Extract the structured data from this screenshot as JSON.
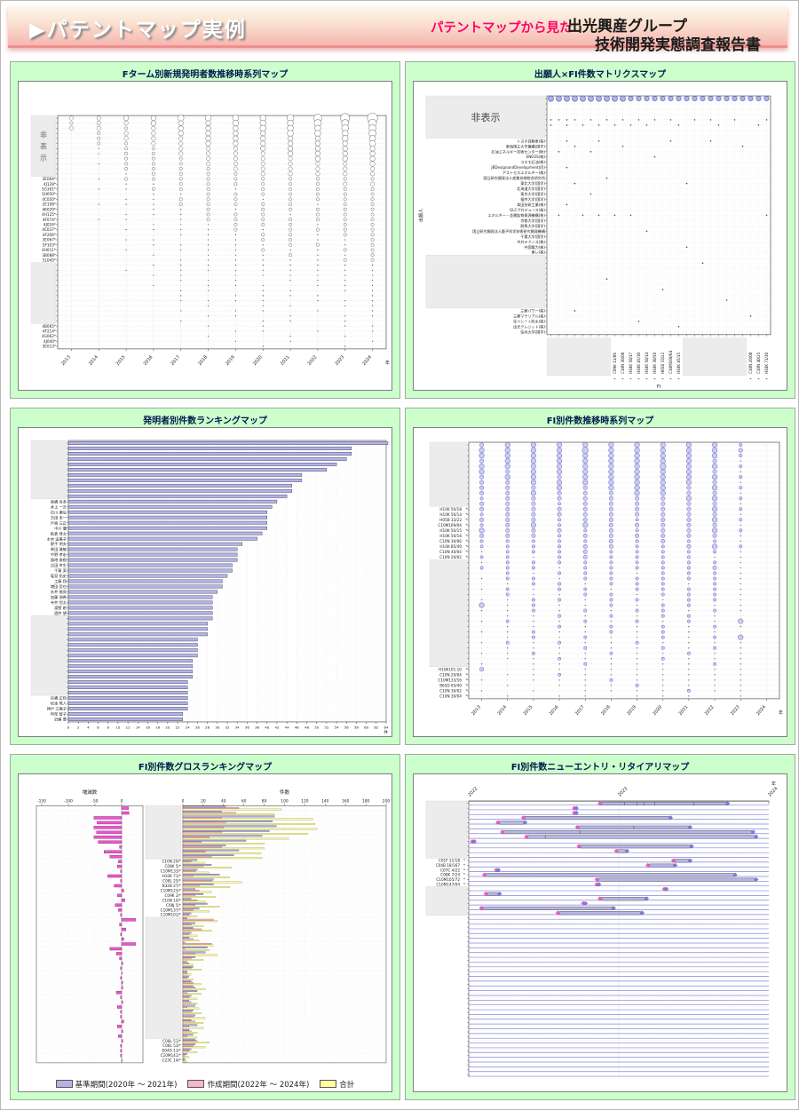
{
  "header": {
    "arrow": "▶",
    "title": "パテントマップ実例",
    "catchphrase": "パテントマップから見た",
    "company": "出光興産グループ",
    "report_title": "技術開発実態調査報告書"
  },
  "colors": {
    "accent_pink": "#ff0066",
    "panel_green": "#ccffcc",
    "bubble_purple": "#b0b0e8",
    "bar_lavender": "#b3b3e6",
    "bar_magenta": "#ee55cc",
    "gantt_bar": "#b6b6ea",
    "diamond_pink": "#ff5ccc",
    "diamond_blue": "#8080e0"
  },
  "chart_data": [
    {
      "id": "fterm-new-inventor-timeseries",
      "type": "scatter",
      "title": "Fターム別新規発明者数推移時系列マップ",
      "x": [
        "2013",
        "2014",
        "2015",
        "2016",
        "2017",
        "2018",
        "2019",
        "2020",
        "2021",
        "2022",
        "2023",
        "2024"
      ],
      "x_unit": "年",
      "hidden_text": "非表示",
      "hidden": [
        [
          0,
          11
        ],
        [
          29,
          40
        ]
      ],
      "labels": {
        "12": "3E064*",
        "13": "4J128*",
        "14": "5G301*",
        "15": "5H050*",
        "16": "4C050*",
        "17": "2E108*",
        "18": "4K029*",
        "19": "4H125*",
        "20": "4F074*",
        "21": "4J026*",
        "22": "4C037*",
        "23": "4F206*",
        "24": "3E067*",
        "25": "5F103*",
        "26": "4H011*",
        "27": "3B088*",
        "28": "5L045*",
        "41": "4B065*",
        "42": "4F214*",
        "43": "4G062*",
        "44": "4J040*",
        "45": "3E013*"
      },
      "rows": [
        "334455556789",
        "233444555667",
        "332344455566",
        "023344445556",
        "023334444455",
        "022334444445",
        "012233344444",
        "012233334444",
        "002223333444",
        "012223333334",
        "002222333333",
        "001222233333",
        "012222222222",
        "001122222233",
        "011222122222",
        "000112222222",
        "001122212222",
        "011122222122",
        "000112122222",
        "001112221222",
        "011012222222",
        "000111222122",
        "001111212222",
        "000011122122",
        "001101122112",
        "000111112212",
        "001011121122",
        "000101112112",
        "000011111122",
        "000111111111",
        "001011111111",
        "000110111111",
        "000011101111",
        "000101110111",
        "000011011011",
        "000010111101",
        "000011110111",
        "000001011011",
        "000010110101",
        "000001101011",
        "000010011010",
        "000001010011",
        "000000110101",
        "000001001010",
        "000000101001",
        "000000010010"
      ]
    },
    {
      "id": "applicant-fi-matrix",
      "type": "heatmap",
      "title": "出願人×FI件数マトリクスマップ",
      "y_axis": "出願人",
      "x_axis": "FI",
      "row_count": 45,
      "col_count": 28,
      "hidden_text": "非表示",
      "y_hidden": [
        [
          0,
          7
        ],
        [
          30,
          39
        ]
      ],
      "x_hidden": [
        [
          0,
          7
        ],
        [
          17,
          24
        ]
      ],
      "y_labels": {
        "8": "トヨタ自動車(株)",
        "9": "東海国立大学機構(国学)",
        "10": "石油エネルギー技術センター(財)",
        "11": "ENEOS(株)",
        "12": "コスモ石油(株)",
        "13": "JBDesignandDevelopment(同)",
        "14": "アストモスエネルギー(株)",
        "15": "国立研究開発法人産業技術総合研究所",
        "16": "東北大学(国学)",
        "17": "北海道大学(国学)",
        "18": "東京大学(国学)",
        "19": "福井大学(国学)",
        "20": "本田技研工業(株)",
        "21": "GLCプロデュース(株)",
        "22": "エネルギー・金属鉱物資源機構(独)",
        "23": "京都大学(国学)",
        "24": "群馬大学(国学)",
        "25": "国立研究開発法人量子科学技術研究開発機構",
        "26": "千葉大学(国学)",
        "27": "中外テクノス(株)",
        "28": "中国電力(株)",
        "29": "東レ(株)",
        "40": "三菱パワー(株)",
        "41": "三菱マテリアル(株)",
        "42": "住ベシート防水(株)",
        "43": "出光クレジット(株)",
        "44": "信州大学(国学)"
      },
      "x_labels": {
        "8": "C09K 11/06",
        "9": "C10N 30/00",
        "10": "H10K 50/17",
        "11": "H10K 85/30",
        "12": "H10K 50/14",
        "13": "H10K 30/50",
        "14": "H05B 33/22",
        "15": "C10M169/04",
        "16": "H10K 85/15",
        "25": "C10N 20/00",
        "26": "C10N 40/25",
        "27": "H10K 71/30"
      },
      "dots": {
        "4": [
          0,
          1,
          2,
          3,
          5,
          7,
          9,
          11,
          13,
          15,
          18,
          20,
          23,
          27
        ],
        "5": [
          0,
          2,
          4,
          6,
          8,
          10,
          12,
          16,
          21,
          26
        ],
        "8": [
          2,
          6,
          15,
          20
        ],
        "9": [
          3,
          9,
          24
        ],
        "10": [
          1,
          5
        ],
        "11": [
          13
        ],
        "13": [
          2
        ],
        "15": [
          7
        ],
        "16": [
          3,
          17
        ],
        "18": [
          5
        ],
        "20": [
          2
        ],
        "22": [
          1,
          4,
          6,
          8,
          10,
          27
        ],
        "25": [
          12
        ],
        "28": [
          17
        ],
        "31": [
          19
        ],
        "34": [
          7
        ],
        "36": [
          14
        ],
        "38": [
          22
        ],
        "40": [
          3
        ],
        "41": [
          25
        ],
        "42": [
          11
        ],
        "43": [
          16
        ]
      }
    },
    {
      "id": "inventor-ranking",
      "type": "bar",
      "title": "発明者別件数ランキングマップ",
      "x_unit": "件",
      "xmax": 64,
      "tick_step": 2,
      "hidden": [
        [
          0,
          10
        ],
        [
          33,
          47
        ]
      ],
      "labels": {
        "11": "高橋 良多",
        "12": "井上 一吉",
        "13": "石川 康弘",
        "14": "吉田 圭一",
        "15": "戸高 三正",
        "16": "中川 優",
        "17": "板倉 啓太",
        "18": "水木 由美子",
        "19": "野手 明夫",
        "20": "柴田 雅敏",
        "21": "中野 孝宏",
        "22": "福地 俊樹",
        "23": "吉田 幸生",
        "24": "千賀 実",
        "25": "塩見 拓史",
        "26": "工藤 翔",
        "27": "増田 哲也",
        "28": "糸井 格亮",
        "29": "加藤 朋希",
        "30": "寺井 恒太",
        "31": "渡壁 創",
        "32": "酒井 望",
        "48": "舟橋 正和",
        "49": "松本 晃人",
        "50": "神戸 江美子",
        "51": "阿部 智子",
        "52": "近藤 要"
      },
      "values": [
        64.5,
        57,
        57,
        56,
        54,
        52,
        47,
        47,
        45,
        45,
        44,
        42,
        41,
        40,
        40,
        40,
        40,
        39,
        38,
        35,
        34,
        34,
        34,
        33,
        33,
        32,
        31,
        31,
        30,
        29,
        29,
        29,
        29,
        29,
        28,
        28,
        28,
        26,
        26,
        26,
        26,
        25,
        25,
        25,
        25,
        24,
        24,
        24,
        24,
        24,
        24,
        23,
        23
      ]
    },
    {
      "id": "fi-count-timeseries",
      "type": "scatter",
      "title": "FI別件数推移時系列マップ",
      "x": [
        "2013",
        "2014",
        "2015",
        "2016",
        "2017",
        "2018",
        "2019",
        "2020",
        "2021",
        "2022",
        "2023",
        "2024"
      ],
      "x_unit": "年",
      "hidden": [
        [
          0,
          11
        ],
        [
          22,
          41
        ]
      ],
      "labels": {
        "12": "H10K 50/18",
        "13": "H10K 50/14",
        "14": "H05B 33/22",
        "15": "C10M169/04",
        "16": "H10K 50/15",
        "17": "H10K 50/16",
        "18": "C10N 30/06",
        "19": "H10K 85/40",
        "20": "C10N 40/04",
        "21": "C10N 20/02",
        "42": "H10K101:10",
        "43": "C10N 20/04",
        "44": "C10M133/16",
        "45": "B65D 65/40",
        "46": "C10N 30/02",
        "47": "C10N 30/04"
      },
      "rows": [
        "344444444420",
        "444454444430",
        "444444444420",
        "344444444310",
        "444444454420",
        "434444444310",
        "344344444420",
        "334444444310",
        "333434443420",
        "334333443310",
        "233333334420",
        "333233333310",
        "333333333420",
        "233333333310",
        "333233233420",
        "234243333310",
        "433323233420",
        "333233333310",
        "222223232210",
        "222233223420",
        "122232222210",
        "221232222110",
        "122222222210",
        "222122222310",
        "021222122210",
        "122122222210",
        "012212221210",
        "121221222210",
        "021122122210",
        "112212212210",
        "412112122110",
        "112121221210",
        "011212122100",
        "121121212140",
        "011212121210",
        "112112121100",
        "012121121240",
        "121211211110",
        "011121121210",
        "112112112110",
        "011211121110",
        "101121111210",
        "301111111110",
        "011211111110",
        "101112111110",
        "010111211110",
        "101011112110",
        "010110111010"
      ]
    },
    {
      "id": "fi-gross-ranking",
      "type": "bar",
      "title": "FI別件数グロスランキングマップ",
      "left_title": "増減数",
      "right_title": "件数",
      "left_ticks": [
        -150,
        -100,
        -50,
        0
      ],
      "right_max": 200,
      "right_tick_step": 20,
      "hidden": [
        [
          0,
          10
        ],
        [
          23,
          47
        ]
      ],
      "labels": {
        "11": "C10N 20/*",
        "12": "C08K 5/*",
        "13": "C10M133/*",
        "14": "H10K 71/*",
        "15": "C08L 25/*",
        "16": "B32B 27/*",
        "17": "C10M125/*",
        "18": "C09K 3/*",
        "19": "C10N 10/*",
        "20": "C08J 5/*",
        "21": "C10M137/*",
        "22": "C10M101/*",
        "48": "C08L 51/*",
        "49": "C08L 53/*",
        "50": "E04D 13/*",
        "51": "C10M141/*",
        "52": "C23C 14/*"
      },
      "pairs": [
        [
          42,
          55
        ],
        [
          38,
          52
        ],
        [
          90,
          38
        ],
        [
          88,
          42
        ],
        [
          92,
          40
        ],
        [
          85,
          38
        ],
        [
          78,
          26
        ],
        [
          62,
          18
        ],
        [
          42,
          38
        ],
        [
          55,
          22
        ],
        [
          50,
          28
        ],
        [
          14,
          8
        ],
        [
          28,
          20
        ],
        [
          14,
          12
        ],
        [
          36,
          10
        ],
        [
          30,
          28
        ],
        [
          30,
          16
        ],
        [
          12,
          16
        ],
        [
          20,
          12
        ],
        [
          8,
          14
        ],
        [
          24,
          12
        ],
        [
          16,
          10
        ],
        [
          8,
          6
        ],
        [
          4,
          30
        ],
        [
          12,
          8
        ],
        [
          10,
          18
        ],
        [
          8,
          6
        ],
        [
          6,
          10
        ],
        [
          2,
          28
        ],
        [
          24,
          2
        ],
        [
          22,
          12
        ],
        [
          12,
          8
        ],
        [
          4,
          6
        ],
        [
          10,
          8
        ],
        [
          4,
          4
        ],
        [
          6,
          4
        ],
        [
          8,
          10
        ],
        [
          10,
          12
        ],
        [
          14,
          4
        ],
        [
          8,
          6
        ],
        [
          6,
          8
        ],
        [
          12,
          4
        ],
        [
          10,
          8
        ],
        [
          12,
          10
        ],
        [
          8,
          12
        ],
        [
          14,
          6
        ],
        [
          6,
          8
        ],
        [
          10,
          4
        ],
        [
          12,
          14
        ],
        [
          12,
          10
        ],
        [
          8,
          6
        ],
        [
          4,
          2
        ],
        [
          2,
          2
        ]
      ],
      "legend": [
        {
          "color": "#b3b3e6",
          "label": "基準期間(2020年 ～ 2021年)"
        },
        {
          "color": "#f5b8c8",
          "label": "作成期間(2022年 ～ 2024年)"
        },
        {
          "color": "#ffffa0",
          "label": "合計"
        }
      ]
    },
    {
      "id": "fi-new-entry-retire",
      "type": "timeline",
      "title": "FI別件数ニューエントリ・リタイアリマップ",
      "x": [
        "2022",
        "2023",
        "2024"
      ],
      "x_unit": "年",
      "row_count": 58,
      "hidden": [
        [
          0,
          11
        ],
        [
          18,
          23
        ]
      ],
      "labels": {
        "12": "C01F 11/18",
        "13": "C04B 18/167",
        "14": "C07C 4/22",
        "15": "C08K 7/24",
        "16": "C10M105/72",
        "17": "C10M147/04"
      },
      "bars": [
        {
          "r": 0,
          "s": 0.44,
          "e": 0.86,
          "t": [
            0.52,
            0.56,
            0.585,
            0.62,
            0.75
          ]
        },
        {
          "r": 1,
          "p": 0.355
        },
        {
          "r": 2,
          "p": 0.355
        },
        {
          "r": 3,
          "s": 0.185,
          "e": 0.67
        },
        {
          "r": 4,
          "s": 0.1,
          "e": 0.185
        },
        {
          "r": 5,
          "s": 0.365,
          "e": 0.735,
          "t": [
            0.55
          ]
        },
        {
          "r": 6,
          "s": 0.115,
          "e": 0.945,
          "t": [
            0.37
          ]
        },
        {
          "r": 7,
          "s": 0.195,
          "e": 0.955,
          "t": [
            0.255
          ]
        },
        {
          "r": 8,
          "p": 0.015
        },
        {
          "r": 9,
          "s": 0.37,
          "e": 0.74
        },
        {
          "r": 10,
          "s": 0.495,
          "e": 0.525
        },
        {
          "r": 12,
          "s": 0.685,
          "e": 0.735
        },
        {
          "r": 13,
          "s": 0.6,
          "e": 0.685
        },
        {
          "r": 14,
          "p": 0.095
        },
        {
          "r": 15,
          "s": 0.055,
          "e": 0.885
        },
        {
          "r": 16,
          "s": 0.43,
          "e": 0.955
        },
        {
          "r": 17,
          "p": 0.43
        },
        {
          "r": 18,
          "p": 0.655
        },
        {
          "r": 19,
          "s": 0.06,
          "e": 0.1
        },
        {
          "r": 20,
          "s": 0.44,
          "e": 0.59
        },
        {
          "r": 21,
          "p": 0.385
        },
        {
          "r": 22,
          "s": 0.045,
          "e": 0.48
        },
        {
          "r": 23,
          "s": 0.3,
          "e": 0.575
        }
      ]
    }
  ]
}
